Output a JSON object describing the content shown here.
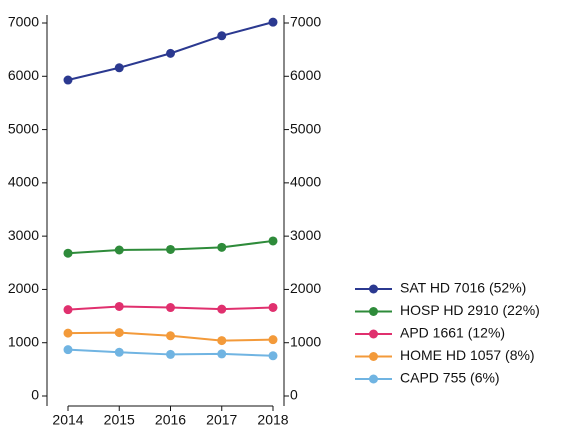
{
  "chart_data": {
    "type": "line",
    "x": [
      2014,
      2015,
      2016,
      2017,
      2018
    ],
    "xlim": [
      2014,
      2018
    ],
    "xticks": [
      2014,
      2015,
      2016,
      2017,
      2018
    ],
    "ylim": [
      0,
      7000
    ],
    "yticks": [
      0,
      1000,
      2000,
      3000,
      4000,
      5000,
      6000,
      7000
    ],
    "series": [
      {
        "name": "SAT HD 7016 (52%)",
        "color": "#2b3990",
        "values": [
          5930,
          6160,
          6430,
          6760,
          7016
        ]
      },
      {
        "name": "HOSP HD 2910 (22%)",
        "color": "#2e8b3a",
        "values": [
          2680,
          2740,
          2750,
          2790,
          2910
        ]
      },
      {
        "name": "APD 1661 (12%)",
        "color": "#e0306e",
        "values": [
          1620,
          1680,
          1660,
          1630,
          1661
        ]
      },
      {
        "name": "HOME HD 1057 (8%)",
        "color": "#f39a3a",
        "values": [
          1180,
          1190,
          1130,
          1040,
          1057
        ]
      },
      {
        "name": "CAPD 755 (6%)",
        "color": "#70b4e2",
        "values": [
          870,
          820,
          780,
          790,
          755
        ]
      }
    ]
  }
}
